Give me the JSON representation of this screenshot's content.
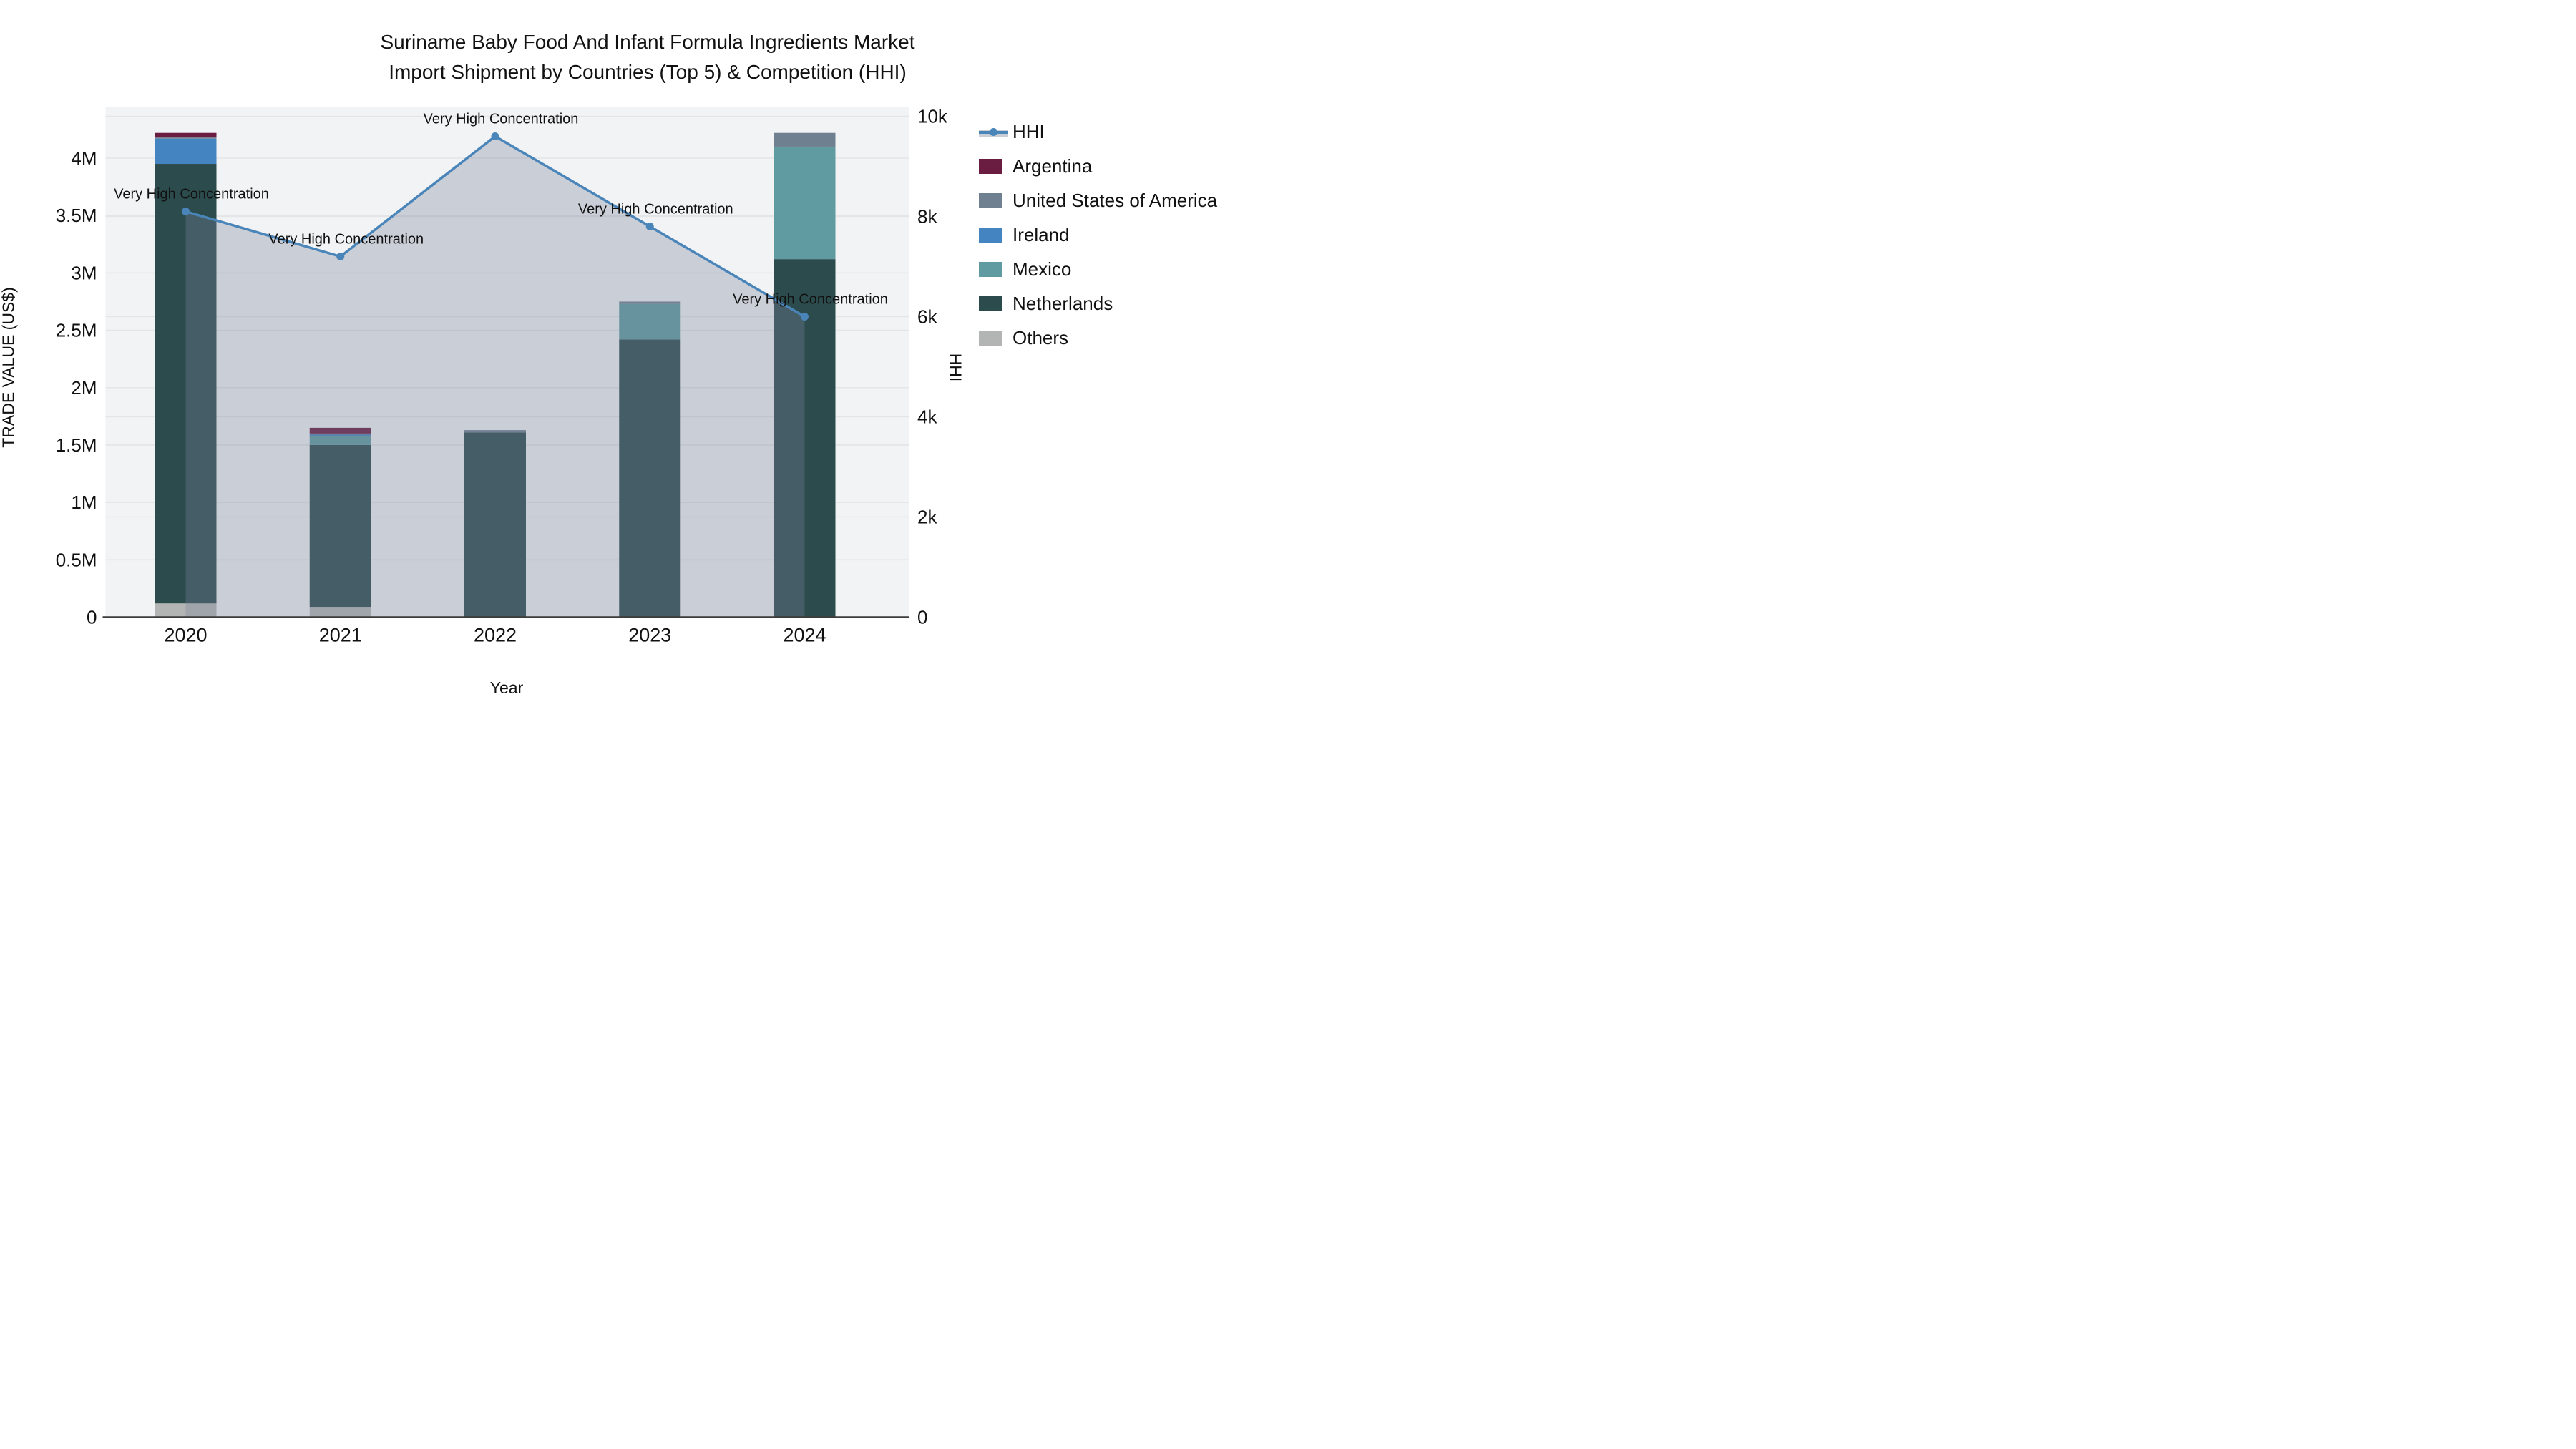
{
  "title": {
    "line1": "Suriname Baby Food And Infant Formula Ingredients Market",
    "line2": "Import Shipment by Countries (Top 5) & Competition (HHI)"
  },
  "axes": {
    "x_title": "Year",
    "y1_title": "TRADE VALUE (US$)",
    "y2_title": "HHI",
    "y1_ticks": [
      {
        "v": 0,
        "label": "0"
      },
      {
        "v": 0.5,
        "label": "0.5M"
      },
      {
        "v": 1,
        "label": "1M"
      },
      {
        "v": 1.5,
        "label": "1.5M"
      },
      {
        "v": 2,
        "label": "2M"
      },
      {
        "v": 2.5,
        "label": "2.5M"
      },
      {
        "v": 3,
        "label": "3M"
      },
      {
        "v": 3.5,
        "label": "3.5M"
      },
      {
        "v": 4,
        "label": "4M"
      }
    ],
    "y2_ticks": [
      {
        "v": 0,
        "label": "0"
      },
      {
        "v": 2000,
        "label": "2k"
      },
      {
        "v": 4000,
        "label": "4k"
      },
      {
        "v": 6000,
        "label": "6k"
      },
      {
        "v": 8000,
        "label": "8k"
      },
      {
        "v": 10000,
        "label": "10k"
      }
    ]
  },
  "legend": {
    "hhi_label": "HHI",
    "items": [
      {
        "label": "Argentina",
        "color": "#6b1d41"
      },
      {
        "label": "United States of America",
        "color": "#6f8090"
      },
      {
        "label": "Ireland",
        "color": "#4484c0"
      },
      {
        "label": "Mexico",
        "color": "#5f9ba1"
      },
      {
        "label": "Netherlands",
        "color": "#2c4b4d"
      },
      {
        "label": "Others",
        "color": "#b3b5b4"
      }
    ]
  },
  "chart_data": {
    "type": "bar+line",
    "title": "Suriname Baby Food And Infant Formula Ingredients Market Import Shipment by Countries (Top 5) & Competition (HHI)",
    "categories": [
      "2020",
      "2021",
      "2022",
      "2023",
      "2024"
    ],
    "bar_unit": "US$ millions",
    "stack_order_bottom_to_top": [
      "Others",
      "Netherlands",
      "Mexico",
      "Ireland",
      "United States of America",
      "Argentina"
    ],
    "series": [
      {
        "name": "Argentina",
        "color": "#6b1d41",
        "values": [
          0.04,
          0.05,
          0,
          0,
          0
        ]
      },
      {
        "name": "United States of America",
        "color": "#6f8090",
        "values": [
          0.01,
          0.01,
          0.02,
          0.02,
          0.12
        ]
      },
      {
        "name": "Ireland",
        "color": "#4484c0",
        "values": [
          0.22,
          0.01,
          0,
          0,
          0
        ]
      },
      {
        "name": "Mexico",
        "color": "#5f9ba1",
        "values": [
          0,
          0.08,
          0,
          0.31,
          0.98
        ]
      },
      {
        "name": "Netherlands",
        "color": "#2c4b4d",
        "values": [
          3.83,
          1.41,
          1.61,
          2.42,
          3.12
        ]
      },
      {
        "name": "Others",
        "color": "#b3b5b4",
        "values": [
          0.12,
          0.09,
          0,
          0,
          0
        ]
      }
    ],
    "bar_totals": [
      4.22,
      1.65,
      1.63,
      2.75,
      4.22
    ],
    "hhi": {
      "name": "HHI",
      "values": [
        8100,
        7200,
        9600,
        7800,
        6000
      ],
      "line_color": "#4a85ba",
      "fill_color": "rgba(120,132,155,0.33)",
      "annotations": [
        "Very High Concentration",
        "Very High Concentration",
        "Very High Concentration",
        "Very High Concentration",
        "Very High Concentration"
      ]
    },
    "ylabel_left": "TRADE VALUE (US$)",
    "ylabel_right": "HHI",
    "xlabel": "Year",
    "y1_range": [
      0,
      4.44
    ],
    "y2_range": [
      0,
      10178
    ],
    "grid": true,
    "legend_position": "top-right",
    "plot_bg": "#f2f3f4",
    "grid_color": "#e4e5e7",
    "axisline_color": "#3c3c3c",
    "annotation_fontsize": 20,
    "tick_fontsize": 26,
    "year_fontsize": 27
  }
}
